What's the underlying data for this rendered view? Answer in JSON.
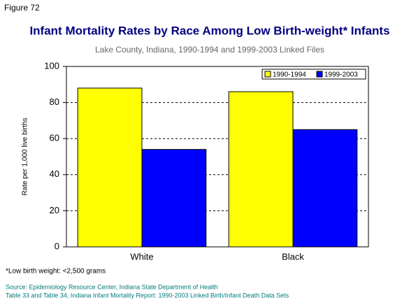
{
  "chart_data": {
    "type": "bar",
    "figure_label": "Figure 72",
    "title": "Infant Mortality Rates by Race Among Low Birth-weight* Infants",
    "subtitle": "Lake County, Indiana, 1990-1994 and 1999-2003 Linked Files",
    "y_label": "Rate per 1,000 live births",
    "categories": [
      "White",
      "Black"
    ],
    "series": [
      {
        "name": "1990-1994",
        "color": "#ffff00",
        "values": [
          88,
          86
        ]
      },
      {
        "name": "1999-2003",
        "color": "#0000ff",
        "values": [
          54,
          65
        ]
      }
    ],
    "ylim": [
      0,
      100
    ],
    "yticks": [
      0,
      20,
      40,
      60,
      80,
      100
    ],
    "grid": true,
    "legend": "top-right",
    "footnote": "*Low birth weight: <2,500 grams",
    "source": [
      "Source: Epidemiology Resource Center, Indiana State Department of Health",
      "Table 33 and Table 34, Indiana Infant Mortality Report: 1990-2003 Linked Birth/Infant Death Data Sets"
    ]
  }
}
